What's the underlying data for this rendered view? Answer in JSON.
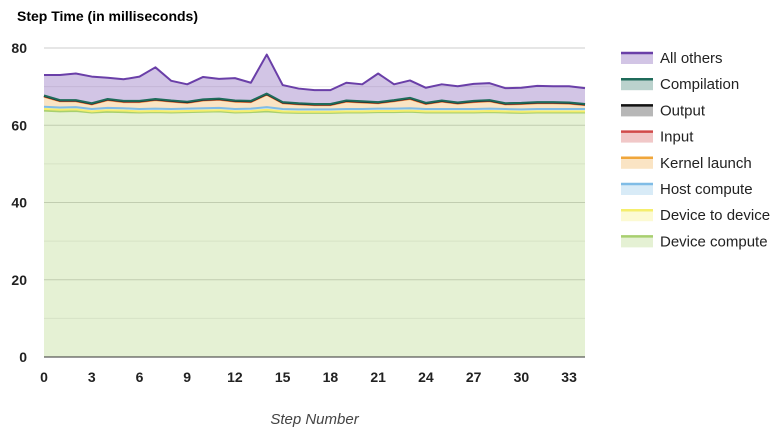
{
  "chart_data": {
    "type": "area",
    "title": "Step Time (in milliseconds)",
    "xlabel": "Step Number",
    "ylabel": "",
    "xlim": [
      0,
      34
    ],
    "ylim": [
      0,
      80
    ],
    "x_ticks": [
      0,
      3,
      6,
      9,
      12,
      15,
      18,
      21,
      24,
      27,
      30,
      33
    ],
    "y_ticks": [
      0,
      20,
      40,
      60,
      80
    ],
    "grid": true,
    "legend_position": "right",
    "x": [
      0,
      1,
      2,
      3,
      4,
      5,
      6,
      7,
      8,
      9,
      10,
      11,
      12,
      13,
      14,
      15,
      16,
      17,
      18,
      19,
      20,
      21,
      22,
      23,
      24,
      25,
      26,
      27,
      28,
      29,
      30,
      31,
      32,
      33,
      34
    ],
    "series": [
      {
        "name": "Device compute",
        "color": "#a8cf6f",
        "values": [
          63.8,
          63.6,
          63.7,
          63.3,
          63.5,
          63.4,
          63.3,
          63.4,
          63.3,
          63.4,
          63.5,
          63.6,
          63.3,
          63.4,
          63.6,
          63.3,
          63.2,
          63.2,
          63.2,
          63.3,
          63.3,
          63.4,
          63.4,
          63.5,
          63.3,
          63.3,
          63.3,
          63.3,
          63.4,
          63.3,
          63.2,
          63.3,
          63.3,
          63.3,
          63.3
        ]
      },
      {
        "name": "Device to device",
        "color": "#f5ee6c",
        "values": [
          0.4,
          0.4,
          0.4,
          0.3,
          0.4,
          0.4,
          0.3,
          0.3,
          0.3,
          0.3,
          0.3,
          0.3,
          0.3,
          0.3,
          0.4,
          0.3,
          0.3,
          0.3,
          0.3,
          0.3,
          0.3,
          0.3,
          0.3,
          0.3,
          0.3,
          0.3,
          0.3,
          0.3,
          0.3,
          0.3,
          0.3,
          0.3,
          0.3,
          0.3,
          0.3
        ]
      },
      {
        "name": "Host compute",
        "color": "#7fbce6",
        "values": [
          0.6,
          0.6,
          0.6,
          0.6,
          0.6,
          0.6,
          0.6,
          0.6,
          0.6,
          0.6,
          0.6,
          0.6,
          0.6,
          0.6,
          0.7,
          0.6,
          0.6,
          0.6,
          0.6,
          0.6,
          0.6,
          0.6,
          0.6,
          0.6,
          0.6,
          0.6,
          0.6,
          0.6,
          0.6,
          0.6,
          0.6,
          0.6,
          0.6,
          0.6,
          0.6
        ]
      },
      {
        "name": "Kernel launch",
        "color": "#f0a63a",
        "values": [
          2.6,
          1.6,
          1.5,
          1.2,
          2.0,
          1.6,
          1.8,
          2.2,
          1.9,
          1.5,
          2.0,
          2.1,
          1.9,
          1.7,
          3.2,
          1.5,
          1.3,
          1.1,
          1.1,
          1.9,
          1.7,
          1.4,
          1.9,
          2.4,
          1.3,
          1.9,
          1.4,
          1.8,
          1.9,
          1.2,
          1.4,
          1.5,
          1.5,
          1.4,
          1.0
        ]
      },
      {
        "name": "Input",
        "color": "#d14a4a",
        "values": [
          0.1,
          0.1,
          0.1,
          0.1,
          0.1,
          0.1,
          0.1,
          0.1,
          0.1,
          0.1,
          0.1,
          0.1,
          0.1,
          0.1,
          0.1,
          0.1,
          0.1,
          0.1,
          0.1,
          0.1,
          0.1,
          0.1,
          0.1,
          0.1,
          0.1,
          0.1,
          0.1,
          0.1,
          0.1,
          0.1,
          0.1,
          0.1,
          0.1,
          0.1,
          0.1
        ]
      },
      {
        "name": "Output",
        "color": "#111111",
        "values": [
          0.1,
          0.1,
          0.1,
          0.1,
          0.1,
          0.1,
          0.1,
          0.1,
          0.1,
          0.1,
          0.1,
          0.1,
          0.1,
          0.1,
          0.1,
          0.1,
          0.1,
          0.1,
          0.1,
          0.1,
          0.1,
          0.1,
          0.1,
          0.1,
          0.1,
          0.1,
          0.1,
          0.1,
          0.1,
          0.1,
          0.1,
          0.1,
          0.1,
          0.1,
          0.1
        ]
      },
      {
        "name": "Compilation",
        "color": "#1f6b5a",
        "values": [
          0.1,
          0.1,
          0.1,
          0.1,
          0.1,
          0.1,
          0.1,
          0.1,
          0.1,
          0.1,
          0.1,
          0.1,
          0.1,
          0.1,
          0.1,
          0.1,
          0.1,
          0.1,
          0.1,
          0.1,
          0.1,
          0.1,
          0.1,
          0.1,
          0.1,
          0.1,
          0.1,
          0.1,
          0.1,
          0.1,
          0.1,
          0.1,
          0.1,
          0.1,
          0.1
        ]
      },
      {
        "name": "All others",
        "color": "#6a3fa8",
        "values": [
          5.3,
          6.5,
          6.9,
          6.9,
          5.5,
          5.6,
          6.3,
          8.2,
          5.1,
          4.5,
          5.8,
          5.1,
          5.8,
          4.7,
          10.1,
          4.4,
          3.8,
          3.6,
          3.6,
          4.6,
          4.4,
          7.4,
          4.1,
          4.5,
          3.9,
          4.2,
          4.2,
          4.4,
          4.4,
          3.9,
          3.9,
          4.2,
          4.1,
          4.2,
          4.1
        ]
      }
    ]
  }
}
